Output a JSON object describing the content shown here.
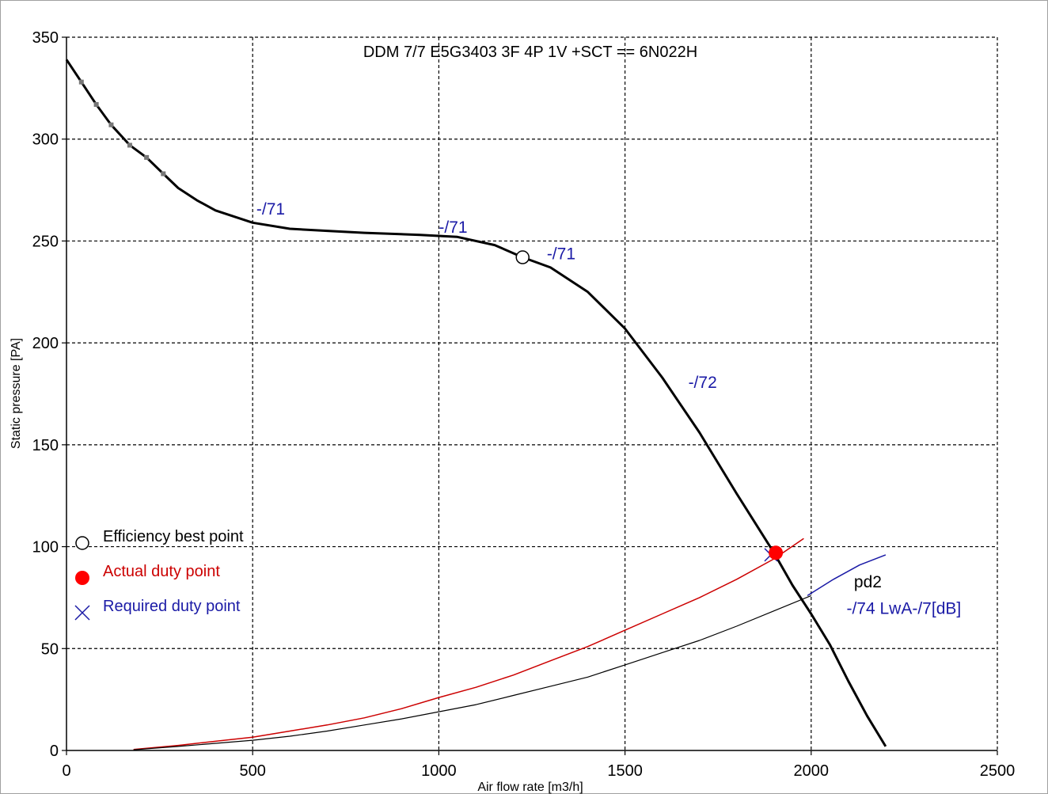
{
  "chart_data": {
    "type": "line",
    "title": "DDM 7/7 E5G3403 3F 4P 1V +SCT == 6N022H",
    "xlabel": "Air flow rate [m3/h]",
    "ylabel": "Static pressure [PA]",
    "xlim": [
      0,
      2500
    ],
    "ylim": [
      0,
      350
    ],
    "x_ticks": [
      "0",
      "500",
      "1000",
      "1500",
      "2000",
      "2500"
    ],
    "y_ticks": [
      "0",
      "50",
      "100",
      "150",
      "200",
      "250",
      "300",
      "350"
    ],
    "grid": true,
    "series": [
      {
        "color": "#000000",
        "points": [
          [
            0,
            339
          ],
          [
            40,
            328
          ],
          [
            80,
            317
          ],
          [
            120,
            307
          ],
          [
            170,
            297
          ],
          [
            215,
            291
          ],
          [
            260,
            283
          ],
          [
            300,
            276
          ],
          [
            350,
            270
          ],
          [
            400,
            265
          ],
          [
            500,
            259
          ],
          [
            600,
            256
          ],
          [
            700,
            255
          ],
          [
            800,
            254
          ],
          [
            950,
            253
          ],
          [
            1050,
            252
          ],
          [
            1150,
            248
          ],
          [
            1225,
            242
          ],
          [
            1300,
            237
          ],
          [
            1400,
            225
          ],
          [
            1500,
            207
          ],
          [
            1600,
            183
          ],
          [
            1700,
            156
          ],
          [
            1800,
            126
          ],
          [
            1900,
            97
          ],
          [
            1950,
            81
          ],
          [
            2000,
            67
          ],
          [
            2050,
            52
          ],
          [
            2100,
            34
          ],
          [
            2150,
            17
          ],
          [
            2200,
            2
          ]
        ]
      },
      {
        "color": "#cc0000",
        "points": [
          [
            180,
            0.5
          ],
          [
            300,
            2.5
          ],
          [
            400,
            4.5
          ],
          [
            500,
            6.5
          ],
          [
            600,
            9.5
          ],
          [
            700,
            12.5
          ],
          [
            800,
            16
          ],
          [
            900,
            20.5
          ],
          [
            1000,
            26
          ],
          [
            1100,
            31
          ],
          [
            1200,
            37
          ],
          [
            1300,
            44
          ],
          [
            1400,
            51
          ],
          [
            1500,
            59
          ],
          [
            1600,
            67
          ],
          [
            1700,
            75
          ],
          [
            1800,
            84
          ],
          [
            1900,
            94
          ],
          [
            1980,
            104
          ]
        ]
      },
      {
        "color": "#000000",
        "points": [
          [
            180,
            0.3
          ],
          [
            300,
            2
          ],
          [
            400,
            3.5
          ],
          [
            500,
            5
          ],
          [
            600,
            7
          ],
          [
            700,
            9.5
          ],
          [
            800,
            12.5
          ],
          [
            900,
            15.5
          ],
          [
            1000,
            19
          ],
          [
            1100,
            22.5
          ],
          [
            1200,
            27
          ],
          [
            1300,
            31.5
          ],
          [
            1400,
            36
          ],
          [
            1500,
            42
          ],
          [
            1600,
            48
          ],
          [
            1700,
            54
          ],
          [
            1800,
            61
          ],
          [
            1900,
            68.5
          ],
          [
            2000,
            76
          ]
        ]
      },
      {
        "color": "#1a1aa6",
        "points": [
          [
            1990,
            76
          ],
          [
            2060,
            84
          ],
          [
            2130,
            91
          ],
          [
            2200,
            96
          ]
        ]
      }
    ],
    "curve_markers": [
      [
        40,
        328
      ],
      [
        80,
        317
      ],
      [
        120,
        307
      ],
      [
        170,
        297
      ],
      [
        215,
        291
      ],
      [
        260,
        283
      ]
    ],
    "annotations": [
      {
        "text": "-/71",
        "x": 510,
        "y": 263
      },
      {
        "text": "-/71",
        "x": 1000,
        "y": 254
      },
      {
        "text": "-/71",
        "x": 1290,
        "y": 241
      },
      {
        "text": "-/72",
        "x": 1670,
        "y": 178
      }
    ],
    "curve_labels": [
      {
        "text": "pd2",
        "x": 2115,
        "y": 80
      },
      {
        "text": "-/74 LwA-/7[dB]",
        "x": 2095,
        "y": 67
      }
    ],
    "points": {
      "efficiency_best": [
        1225,
        242
      ],
      "actual_duty": [
        1905,
        97
      ],
      "required_duty": [
        1892,
        96
      ]
    },
    "legend": {
      "placement": "lower-left",
      "items": [
        {
          "label": "Efficiency best point",
          "marker": "open-circle",
          "color": "#000000"
        },
        {
          "label": "Actual duty point",
          "marker": "filled-circle",
          "color": "#cc0000"
        },
        {
          "label": "Required duty point",
          "marker": "cross",
          "color": "#1a1aa6"
        }
      ]
    }
  }
}
